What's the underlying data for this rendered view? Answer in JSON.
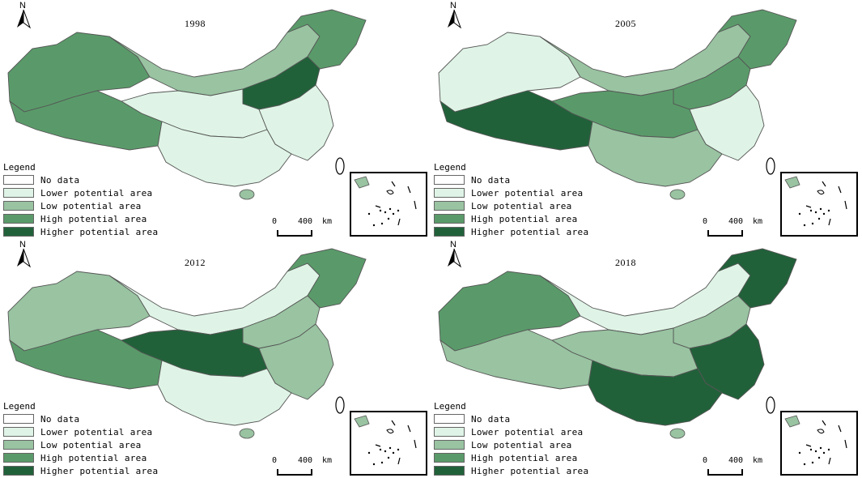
{
  "panels": [
    {
      "year": "1998",
      "values": {
        "north": "Low",
        "east": "Lower",
        "west": "High",
        "southwest": "High",
        "northeast": "High",
        "center": "Lower",
        "south": "Lower",
        "northcentral": "Higher"
      }
    },
    {
      "year": "2005",
      "values": {
        "north": "Low",
        "east": "Lower",
        "west": "Lower",
        "southwest": "Higher",
        "northeast": "High",
        "center": "High",
        "south": "Low",
        "northcentral": "High"
      }
    },
    {
      "year": "2012",
      "values": {
        "north": "Lower",
        "east": "Low",
        "west": "Low",
        "southwest": "High",
        "northeast": "High",
        "center": "Higher",
        "south": "Lower",
        "northcentral": "Low"
      }
    },
    {
      "year": "2018",
      "values": {
        "north": "Lower",
        "east": "Higher",
        "west": "High",
        "southwest": "Low",
        "northeast": "Higher",
        "center": "Low",
        "south": "Higher",
        "northcentral": "Low"
      }
    }
  ],
  "legend": {
    "title": "Legend",
    "items": [
      {
        "key": "No data",
        "label": "No data",
        "color": "#ffffff"
      },
      {
        "key": "Lower",
        "label": "Lower potential area",
        "color": "#dff4e6"
      },
      {
        "key": "Low",
        "label": "Low potential area",
        "color": "#99c3a1"
      },
      {
        "key": "High",
        "label": "High potential area",
        "color": "#5a9a6a"
      },
      {
        "key": "Higher",
        "label": "Higher potential area",
        "color": "#21613a"
      }
    ]
  },
  "north_arrow": "N",
  "scale": {
    "zero": "0",
    "distance": "400",
    "unit": "km"
  },
  "colors": {
    "outline": "#555555",
    "bg": "#ffffff"
  }
}
